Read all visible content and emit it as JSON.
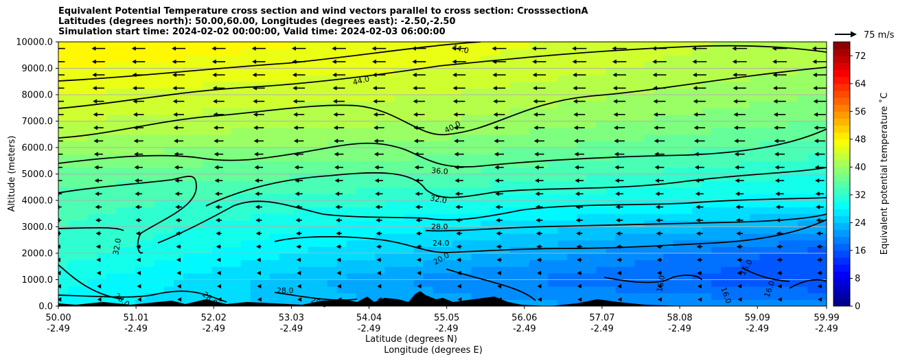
{
  "title_lines": [
    "Equivalent Potential Temperature cross section and wind vectors parallel to cross section: CrosssectionA",
    "Latitudes (degrees north): 50.00,60.00, Longitudes (degrees east): -2.50,-2.50",
    "Simulation start time: 2024-02-02 00:00:00, Valid time: 2024-02-03 06:00:00"
  ],
  "reference_vector_label": "75 m/s",
  "colors": {
    "cmap": [
      "#00007f",
      "#0000ff",
      "#007fff",
      "#00ffff",
      "#7fff7f",
      "#ffff00",
      "#ff7f00",
      "#ff0000",
      "#7f0000"
    ],
    "terrain": "#000000",
    "contour": "#000000",
    "grid": "#b0b0b0"
  },
  "chart_data": {
    "type": "heatmap",
    "subtype": "filled contour cross section with line contours and wind vectors",
    "ylabel": "Altitude (meters)",
    "xlabel_lines": [
      "Latitude (degrees N)",
      "Longitude (degrees E)"
    ],
    "ylim": [
      0,
      10000
    ],
    "xlim": [
      50.0,
      59.99
    ],
    "yticks": [
      "0.0",
      "1000.0",
      "2000.0",
      "3000.0",
      "4000.0",
      "5000.0",
      "6000.0",
      "7000.0",
      "8000.0",
      "9000.0",
      "10000.0"
    ],
    "xticks_lat": [
      "50.00",
      "51.01",
      "52.02",
      "53.03",
      "54.04",
      "55.05",
      "56.06",
      "57.07",
      "58.08",
      "59.09",
      "59.99"
    ],
    "xticks_lon": [
      "-2.49",
      "-2.49",
      "-2.49",
      "-2.49",
      "-2.49",
      "-2.49",
      "-2.49",
      "-2.49",
      "-2.49",
      "-2.49",
      "-2.49"
    ],
    "grid": "horizontal",
    "colorbar": {
      "label": "Equivalent potential temperature ˚C",
      "min": 0,
      "max": 76,
      "ticks": [
        "0",
        "8",
        "16",
        "24",
        "32",
        "40",
        "48",
        "56",
        "64",
        "72"
      ]
    },
    "contour_labels": [
      "44.0",
      "44.0",
      "40.0",
      "36.0",
      "32.0",
      "28.0",
      "24.0",
      "20.0",
      "32.0",
      "28.0",
      "28.0",
      "28.0",
      "28.0",
      "16.0",
      "16.0",
      "16.0",
      "16.0"
    ],
    "wind_direction": "southward (toward lower latitude) throughout the section",
    "theta_e_samples_degC": {
      "altitudes_m": [
        0,
        1000,
        2000,
        3000,
        4000,
        5000,
        6000,
        7000,
        8000,
        9000,
        10000
      ],
      "at_lat_50_0": [
        28,
        30,
        32,
        33,
        34,
        36,
        40,
        43,
        45,
        47,
        49
      ],
      "at_lat_55_0": [
        22,
        20,
        24,
        27,
        31,
        35,
        38,
        41,
        43,
        45,
        46
      ],
      "at_lat_59_9": [
        20,
        15,
        16,
        22,
        28,
        31,
        34,
        37,
        39,
        41,
        42
      ]
    }
  }
}
